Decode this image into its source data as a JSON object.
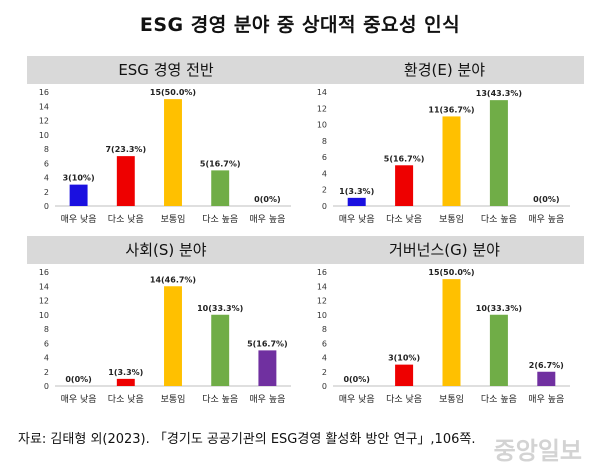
{
  "title": "ESG 경영 분야 중 상대적 중요성 인식",
  "source": "자료: 김태형 외(2023). 「경기도 공공기관의 ESG경영 활성화 방안 연구」,106쪽.",
  "watermark": "중앙일보",
  "colors": [
    "#1a10e0",
    "#ee0000",
    "#ffc000",
    "#70ad47",
    "#7030a0"
  ],
  "chart_data": [
    {
      "type": "bar",
      "title": "ESG 경영 전반",
      "categories": [
        "매우 낮음",
        "다소 낮음",
        "보통임",
        "다소 높음",
        "매우 높음"
      ],
      "values": [
        3,
        7,
        15,
        5,
        0
      ],
      "labels": [
        "3(10%)",
        "7(23.3%)",
        "15(50.0%)",
        "5(16.7%)",
        "0(0%)"
      ],
      "ylim": [
        0,
        16
      ],
      "yticks": [
        0,
        2,
        4,
        6,
        8,
        10,
        12,
        14,
        16
      ]
    },
    {
      "type": "bar",
      "title": "환경(E) 분야",
      "categories": [
        "매우 낮음",
        "다소 낮음",
        "보통임",
        "다소 높음",
        "매우 높음"
      ],
      "values": [
        1,
        5,
        11,
        13,
        0
      ],
      "labels": [
        "1(3.3%)",
        "5(16.7%)",
        "11(36.7%)",
        "13(43.3%)",
        "0(0%)"
      ],
      "ylim": [
        0,
        14
      ],
      "yticks": [
        0,
        2,
        4,
        6,
        8,
        10,
        12,
        14
      ]
    },
    {
      "type": "bar",
      "title": "사회(S) 분야",
      "categories": [
        "매우 낮음",
        "다소 낮음",
        "보통임",
        "다소 높음",
        "매우 높음"
      ],
      "values": [
        0,
        1,
        14,
        10,
        5
      ],
      "labels": [
        "0(0%)",
        "1(3.3%)",
        "14(46.7%)",
        "10(33.3%)",
        "5(16.7%)"
      ],
      "ylim": [
        0,
        16
      ],
      "yticks": [
        0,
        2,
        4,
        6,
        8,
        10,
        12,
        14,
        16
      ]
    },
    {
      "type": "bar",
      "title": "거버넌스(G) 분야",
      "categories": [
        "매우 낮음",
        "다소 낮음",
        "보통임",
        "다소 높음",
        "매우 높음"
      ],
      "values": [
        0,
        3,
        15,
        10,
        2
      ],
      "labels": [
        "0(0%)",
        "3(10%)",
        "15(50.0%)",
        "10(33.3%)",
        "2(6.7%)"
      ],
      "ylim": [
        0,
        16
      ],
      "yticks": [
        0,
        2,
        4,
        6,
        8,
        10,
        12,
        14,
        16
      ]
    }
  ]
}
